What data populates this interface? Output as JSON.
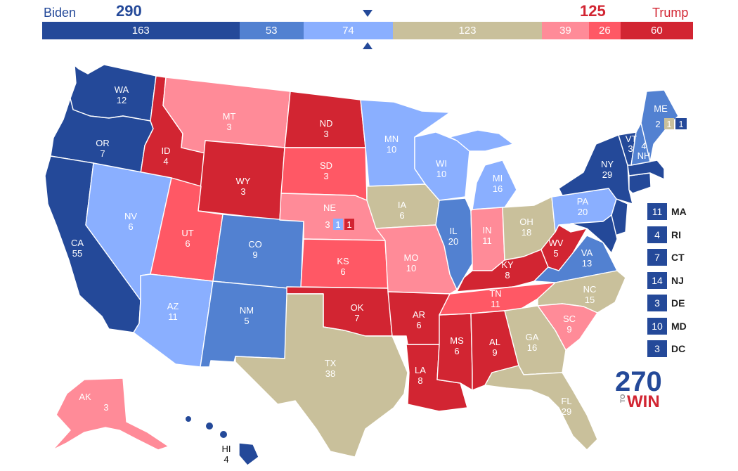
{
  "header": {
    "left_candidate": "Biden",
    "left_total": "290",
    "right_candidate": "Trump",
    "right_total": "125"
  },
  "colors": {
    "safe_d": "#244999",
    "likely_d": "#5281D1",
    "lean_d": "#8AAFFF",
    "tossup": "#C9C09B",
    "lean_r": "#FF8B98",
    "likely_r": "#FF5865",
    "safe_r": "#D22532",
    "left_name": "#244999",
    "right_name": "#D22532"
  },
  "bar_segments": [
    {
      "value": 163,
      "color": "#244999"
    },
    {
      "value": 53,
      "color": "#5281D1"
    },
    {
      "value": 74,
      "color": "#8AAFFF"
    },
    {
      "value": 123,
      "color": "#C9C09B"
    },
    {
      "value": 39,
      "color": "#FF8B98"
    },
    {
      "value": 26,
      "color": "#FF5865"
    },
    {
      "value": 60,
      "color": "#D22532"
    }
  ],
  "states": {
    "WA": {
      "abbr": "WA",
      "ev": "12"
    },
    "OR": {
      "abbr": "OR",
      "ev": "7"
    },
    "CA": {
      "abbr": "CA",
      "ev": "55"
    },
    "ID": {
      "abbr": "ID",
      "ev": "4"
    },
    "NV": {
      "abbr": "NV",
      "ev": "6"
    },
    "MT": {
      "abbr": "MT",
      "ev": "3"
    },
    "WY": {
      "abbr": "WY",
      "ev": "3"
    },
    "UT": {
      "abbr": "UT",
      "ev": "6"
    },
    "AZ": {
      "abbr": "AZ",
      "ev": "11"
    },
    "CO": {
      "abbr": "CO",
      "ev": "9"
    },
    "NM": {
      "abbr": "NM",
      "ev": "5"
    },
    "ND": {
      "abbr": "ND",
      "ev": "3"
    },
    "SD": {
      "abbr": "SD",
      "ev": "3"
    },
    "NE": {
      "abbr": "NE",
      "ev": "3"
    },
    "KS": {
      "abbr": "KS",
      "ev": "6"
    },
    "OK": {
      "abbr": "OK",
      "ev": "7"
    },
    "TX": {
      "abbr": "TX",
      "ev": "38"
    },
    "MN": {
      "abbr": "MN",
      "ev": "10"
    },
    "IA": {
      "abbr": "IA",
      "ev": "6"
    },
    "MO": {
      "abbr": "MO",
      "ev": "10"
    },
    "AR": {
      "abbr": "AR",
      "ev": "6"
    },
    "LA": {
      "abbr": "LA",
      "ev": "8"
    },
    "WI": {
      "abbr": "WI",
      "ev": "10"
    },
    "IL": {
      "abbr": "IL",
      "ev": "20"
    },
    "MS": {
      "abbr": "MS",
      "ev": "6"
    },
    "MI": {
      "abbr": "MI",
      "ev": "16"
    },
    "IN": {
      "abbr": "IN",
      "ev": "11"
    },
    "KY": {
      "abbr": "KY",
      "ev": "8"
    },
    "TN": {
      "abbr": "TN",
      "ev": "11"
    },
    "AL": {
      "abbr": "AL",
      "ev": "9"
    },
    "OH": {
      "abbr": "OH",
      "ev": "18"
    },
    "WV": {
      "abbr": "WV",
      "ev": "5"
    },
    "GA": {
      "abbr": "GA",
      "ev": "16"
    },
    "FL": {
      "abbr": "FL",
      "ev": "29"
    },
    "SC": {
      "abbr": "SC",
      "ev": "9"
    },
    "NC": {
      "abbr": "NC",
      "ev": "15"
    },
    "VA": {
      "abbr": "VA",
      "ev": "13"
    },
    "PA": {
      "abbr": "PA",
      "ev": "20"
    },
    "NY": {
      "abbr": "NY",
      "ev": "29"
    },
    "VT": {
      "abbr": "VT",
      "ev": "3"
    },
    "NH": {
      "abbr": "NH",
      "ev": "4"
    },
    "ME": {
      "abbr": "ME",
      "ev": "2"
    },
    "AK": {
      "abbr": "AK",
      "ev": "3"
    },
    "HI": {
      "abbr": "HI",
      "ev": "4"
    }
  },
  "split_districts": {
    "ne_d1": "1",
    "ne_d2": "1",
    "me_d1": "1",
    "me_d2": "1"
  },
  "small_states": [
    {
      "abbr": "MA",
      "ev": "11"
    },
    {
      "abbr": "RI",
      "ev": "4"
    },
    {
      "abbr": "CT",
      "ev": "7"
    },
    {
      "abbr": "NJ",
      "ev": "14"
    },
    {
      "abbr": "DE",
      "ev": "3"
    },
    {
      "abbr": "MD",
      "ev": "10"
    },
    {
      "abbr": "DC",
      "ev": "3"
    }
  ],
  "logo": {
    "number": "270",
    "to": "TO",
    "win": "WIN"
  }
}
